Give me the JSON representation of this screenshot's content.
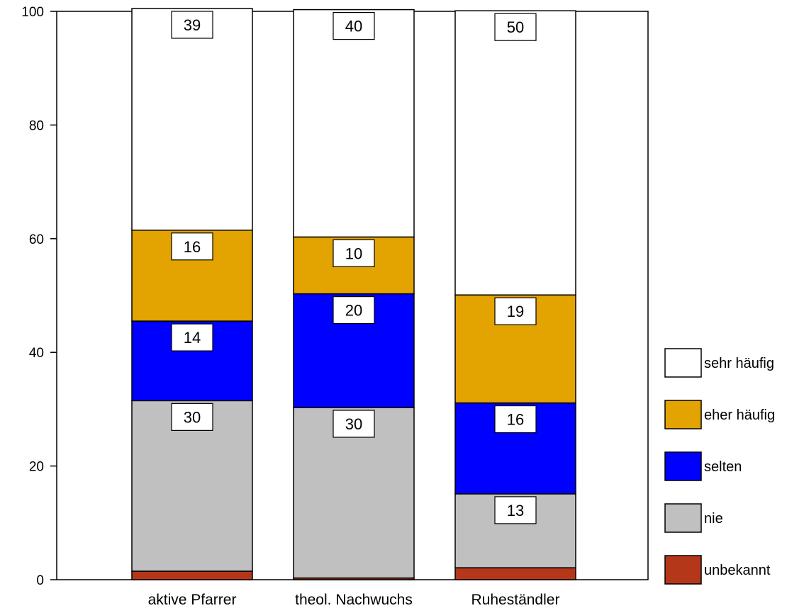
{
  "chart_data": {
    "type": "bar",
    "stacked": true,
    "categories": [
      "aktive Pfarrer",
      "theol. Nachwuchs",
      "Ruheständler"
    ],
    "series": [
      {
        "name": "unbekannt",
        "color": "#b5371a",
        "values": [
          1.5,
          0.3,
          2.1
        ]
      },
      {
        "name": "nie",
        "color": "#c0c0c0",
        "values": [
          30,
          30,
          13
        ]
      },
      {
        "name": "selten",
        "color": "#0000ff",
        "values": [
          14,
          20,
          16
        ]
      },
      {
        "name": "eher häufig",
        "color": "#e3a300",
        "values": [
          16,
          10,
          19
        ]
      },
      {
        "name": "sehr häufig",
        "color": "#ffffff",
        "values": [
          39,
          40,
          50
        ]
      }
    ],
    "data_labels": {
      "nie": [
        "30",
        "30",
        "13"
      ],
      "selten": [
        "14",
        "20",
        "16"
      ],
      "eher häufig": [
        "16",
        "10",
        "19"
      ],
      "sehr häufig": [
        "39",
        "40",
        "50"
      ]
    },
    "yticks": [
      "0",
      "20",
      "40",
      "60",
      "80",
      "100"
    ],
    "ylim": [
      0,
      100
    ],
    "legend_order": [
      "sehr häufig",
      "eher häufig",
      "selten",
      "nie",
      "unbekannt"
    ],
    "legend_position": "right",
    "grid": false
  }
}
